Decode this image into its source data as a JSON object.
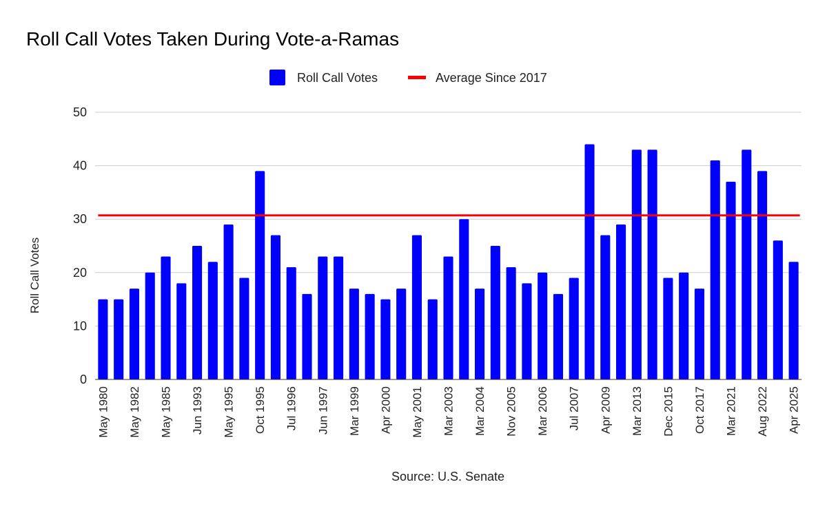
{
  "colors": {
    "bar": "#0000ff",
    "average_line": "#ff0000",
    "grid": "#cccccc"
  },
  "chart_data": {
    "type": "bar",
    "title": "Roll Call Votes Taken During Vote-a-Ramas",
    "ylabel": "Roll Call Votes",
    "xlabel": "",
    "source": "Source: U.S. Senate",
    "ylim": [
      0,
      50
    ],
    "yticks": [
      0,
      10,
      20,
      30,
      40,
      50
    ],
    "grid": true,
    "legend_position": "top-center",
    "legend": [
      {
        "label": "Roll Call Votes",
        "swatch": "box"
      },
      {
        "label": "Average Since 2017",
        "swatch": "line"
      }
    ],
    "x_tick_labels": [
      {
        "index": 0,
        "label": "May 1980"
      },
      {
        "index": 2,
        "label": "May 1982"
      },
      {
        "index": 4,
        "label": "May 1985"
      },
      {
        "index": 6,
        "label": "Jun 1993"
      },
      {
        "index": 8,
        "label": "May 1995"
      },
      {
        "index": 10,
        "label": "Oct 1995"
      },
      {
        "index": 12,
        "label": "Jul 1996"
      },
      {
        "index": 14,
        "label": "Jun 1997"
      },
      {
        "index": 16,
        "label": "Mar 1999"
      },
      {
        "index": 18,
        "label": "Apr 2000"
      },
      {
        "index": 20,
        "label": "May 2001"
      },
      {
        "index": 22,
        "label": "Mar 2003"
      },
      {
        "index": 24,
        "label": "Mar 2004"
      },
      {
        "index": 26,
        "label": "Nov 2005"
      },
      {
        "index": 28,
        "label": "Mar 2006"
      },
      {
        "index": 30,
        "label": "Jul 2007"
      },
      {
        "index": 32,
        "label": "Apr 2009"
      },
      {
        "index": 34,
        "label": "Mar 2013"
      },
      {
        "index": 36,
        "label": "Dec 2015"
      },
      {
        "index": 38,
        "label": "Oct 2017"
      },
      {
        "index": 40,
        "label": "Mar 2021"
      },
      {
        "index": 42,
        "label": "Aug 2022"
      },
      {
        "index": 44,
        "label": "Apr 2025"
      }
    ],
    "series": [
      {
        "name": "Roll Call Votes",
        "values": [
          15,
          15,
          17,
          20,
          23,
          18,
          25,
          22,
          29,
          19,
          39,
          27,
          21,
          16,
          23,
          23,
          17,
          16,
          15,
          17,
          27,
          15,
          23,
          30,
          17,
          25,
          21,
          18,
          20,
          16,
          19,
          44,
          27,
          29,
          43,
          43,
          19,
          20,
          17,
          41,
          37,
          43,
          39,
          26,
          22
        ]
      }
    ],
    "average_line": {
      "name": "Average Since 2017",
      "value": 30.7
    }
  }
}
